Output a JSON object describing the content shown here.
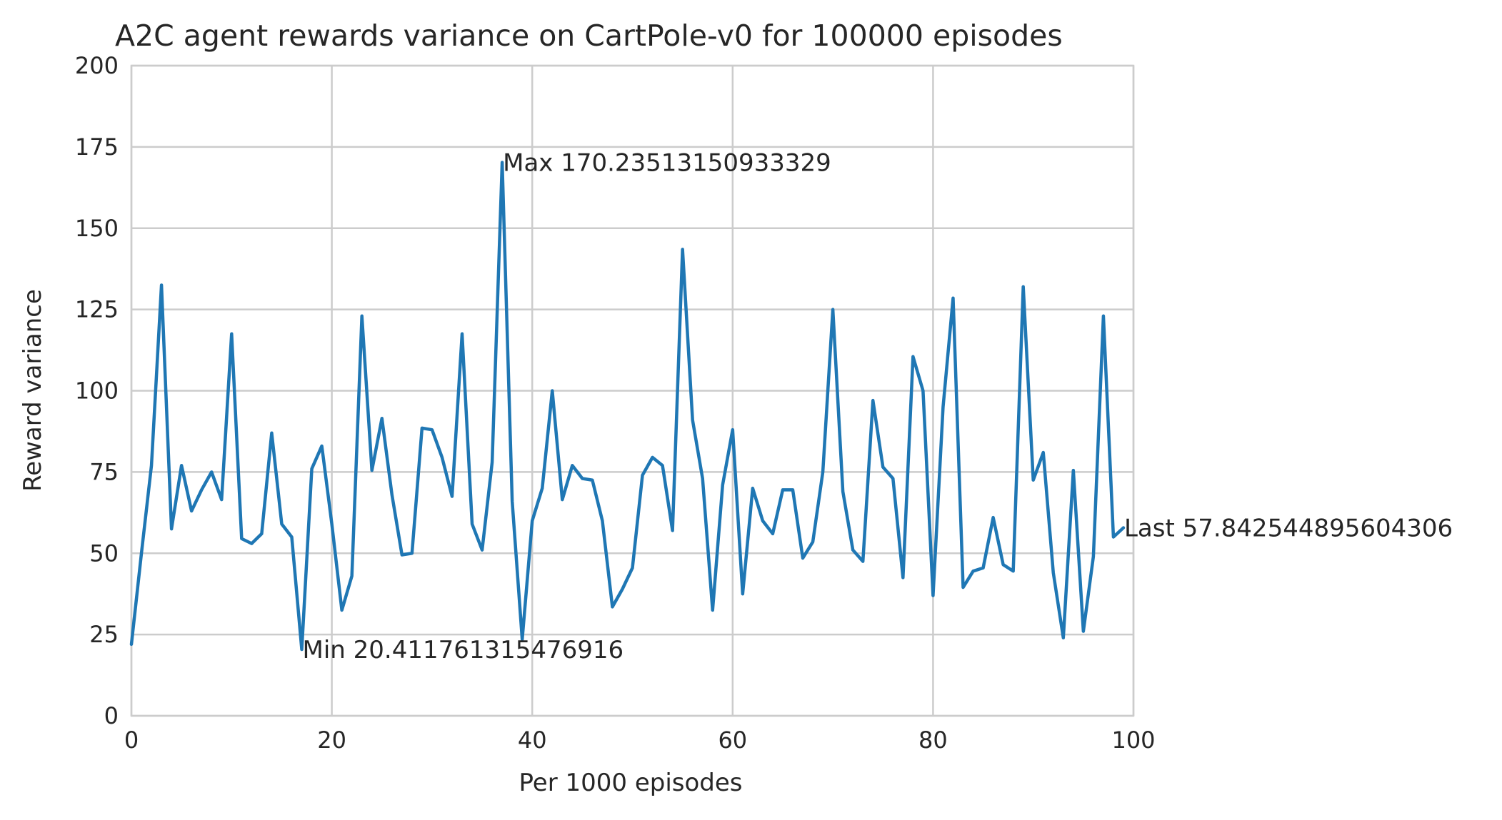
{
  "chart_data": {
    "type": "line",
    "title": "A2C agent rewards variance on CartPole-v0 for 100000 episodes",
    "xlabel": "Per 1000 episodes",
    "ylabel": "Reward variance",
    "xlim": [
      0,
      100
    ],
    "ylim": [
      0,
      200
    ],
    "xticks": [
      0,
      20,
      40,
      60,
      80,
      100
    ],
    "yticks": [
      0,
      25,
      50,
      75,
      100,
      125,
      150,
      175,
      200
    ],
    "grid": true,
    "line_color": "#1f77b4",
    "x": [
      0,
      1,
      2,
      3,
      4,
      5,
      6,
      7,
      8,
      9,
      10,
      11,
      12,
      13,
      14,
      15,
      16,
      17,
      18,
      19,
      20,
      21,
      22,
      23,
      24,
      25,
      26,
      27,
      28,
      29,
      30,
      31,
      32,
      33,
      34,
      35,
      36,
      37,
      38,
      39,
      40,
      41,
      42,
      43,
      44,
      45,
      46,
      47,
      48,
      49,
      50,
      51,
      52,
      53,
      54,
      55,
      56,
      57,
      58,
      59,
      60,
      61,
      62,
      63,
      64,
      65,
      66,
      67,
      68,
      69,
      70,
      71,
      72,
      73,
      74,
      75,
      76,
      77,
      78,
      79,
      80,
      81,
      82,
      83,
      84,
      85,
      86,
      87,
      88,
      89,
      90,
      91,
      92,
      93,
      94,
      95,
      96,
      97,
      98,
      99
    ],
    "values": [
      22,
      50,
      77,
      132.5,
      57.5,
      77,
      63,
      69.5,
      75,
      66.5,
      117.5,
      54.5,
      53,
      56,
      87,
      59,
      55,
      20.411761315476916,
      76,
      83,
      59,
      32.5,
      43,
      123,
      75.5,
      91.5,
      68,
      49.5,
      50,
      88.5,
      88,
      79.5,
      67.5,
      117.5,
      59,
      51,
      78,
      170.23513150933329,
      66,
      23.5,
      60,
      70,
      100,
      66.5,
      77,
      73,
      72.5,
      60,
      33.5,
      39,
      45.5,
      74,
      79.5,
      77,
      57,
      143.5,
      91,
      73,
      32.5,
      71,
      88,
      37.5,
      70,
      60,
      56,
      69.5,
      69.5,
      48.5,
      53.5,
      75,
      125,
      69,
      51,
      47.5,
      97,
      76.5,
      73,
      42.5,
      110.5,
      100,
      37,
      95,
      128.5,
      39.5,
      44.5,
      45.5,
      61,
      46.5,
      44.5,
      132,
      72.5,
      81,
      44,
      24,
      75.5,
      26,
      49,
      123,
      55,
      57.842544895604306
    ],
    "annotations": [
      {
        "text": "Max 170.23513150933329",
        "x": 37,
        "y": 170.23513150933329
      },
      {
        "text": "Min 20.411761315476916",
        "x": 17,
        "y": 20.411761315476916
      },
      {
        "text": "Last 57.842544895604306",
        "x": 99,
        "y": 57.842544895604306
      }
    ]
  }
}
